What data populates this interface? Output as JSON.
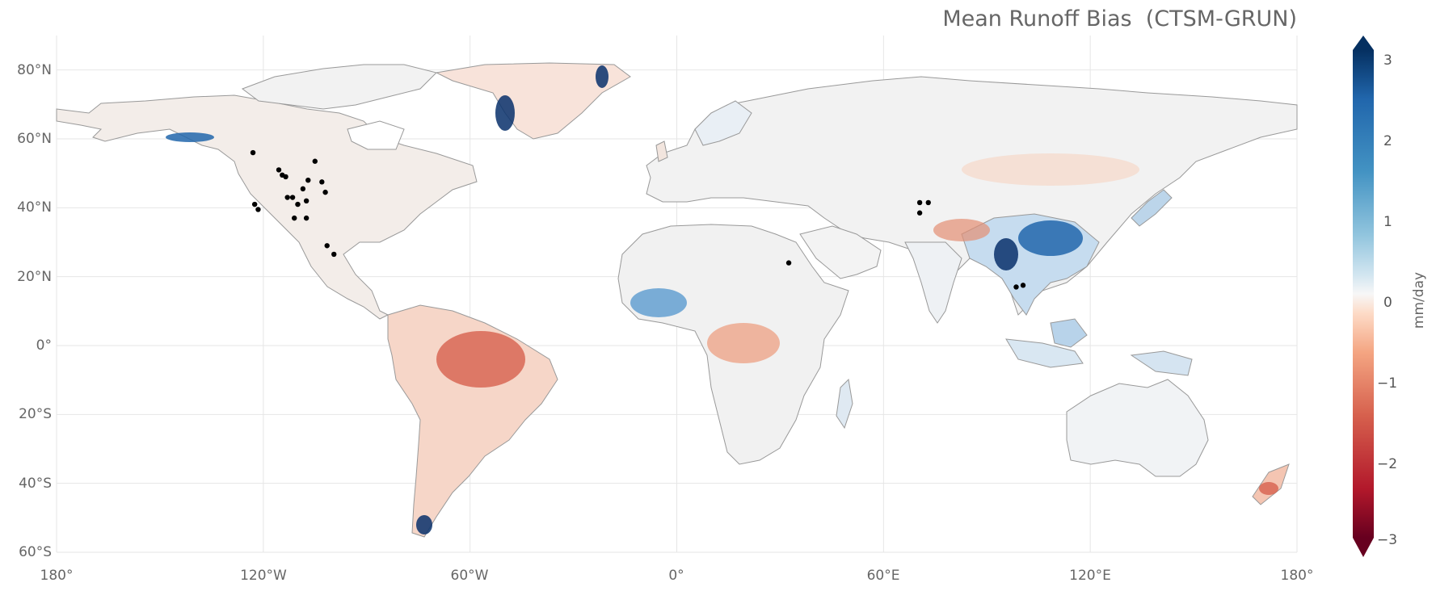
{
  "title": "Mean Runoff Bias  (CTSM-GRUN)",
  "map": {
    "lon_ticks": [
      "180°",
      "120°W",
      "60°W",
      "0°",
      "60°E",
      "120°E",
      "180°"
    ],
    "lat_ticks": [
      "80°N",
      "60°N",
      "40°N",
      "20°N",
      "0°",
      "20°S",
      "40°S",
      "60°S"
    ]
  },
  "colorbar": {
    "label": "mm/day",
    "ticks": [
      "3",
      "2",
      "1",
      "0",
      "−1",
      "−2",
      "−3"
    ],
    "cmap": "RdBu",
    "range": [
      -3,
      3
    ],
    "extend": "both"
  },
  "colors": {
    "strong_positive": "#08306b",
    "positive": "#4a90c8",
    "weak_positive": "#d6e6f3",
    "neutral": "#f5f5f5",
    "weak_negative": "#f7d2bf",
    "negative": "#d7604d",
    "strong_negative": "#67001f",
    "coastline": "#999999",
    "grid": "#e6e6e6",
    "station_marker": "#000000"
  },
  "stations": [
    {
      "lon": -123.0,
      "lat": 56.0
    },
    {
      "lon": -115.5,
      "lat": 51.0
    },
    {
      "lon": -114.5,
      "lat": 49.5
    },
    {
      "lon": -113.5,
      "lat": 49.0
    },
    {
      "lon": -105.0,
      "lat": 53.5
    },
    {
      "lon": -122.5,
      "lat": 41.0
    },
    {
      "lon": -121.5,
      "lat": 39.5
    },
    {
      "lon": -113.0,
      "lat": 43.0
    },
    {
      "lon": -111.5,
      "lat": 43.0
    },
    {
      "lon": -110.0,
      "lat": 41.0
    },
    {
      "lon": -108.5,
      "lat": 45.5
    },
    {
      "lon": -107.0,
      "lat": 48.0
    },
    {
      "lon": -107.5,
      "lat": 42.0
    },
    {
      "lon": -103.0,
      "lat": 47.5
    },
    {
      "lon": -102.0,
      "lat": 44.5
    },
    {
      "lon": -111.0,
      "lat": 37.0
    },
    {
      "lon": -107.5,
      "lat": 37.0
    },
    {
      "lon": -101.5,
      "lat": 29.0
    },
    {
      "lon": -99.5,
      "lat": 26.5
    },
    {
      "lon": 32.5,
      "lat": 24.0
    },
    {
      "lon": 70.5,
      "lat": 41.5
    },
    {
      "lon": 73.0,
      "lat": 41.5
    },
    {
      "lon": 70.5,
      "lat": 38.5
    },
    {
      "lon": 98.5,
      "lat": 17.0
    },
    {
      "lon": 100.5,
      "lat": 17.5
    }
  ]
}
